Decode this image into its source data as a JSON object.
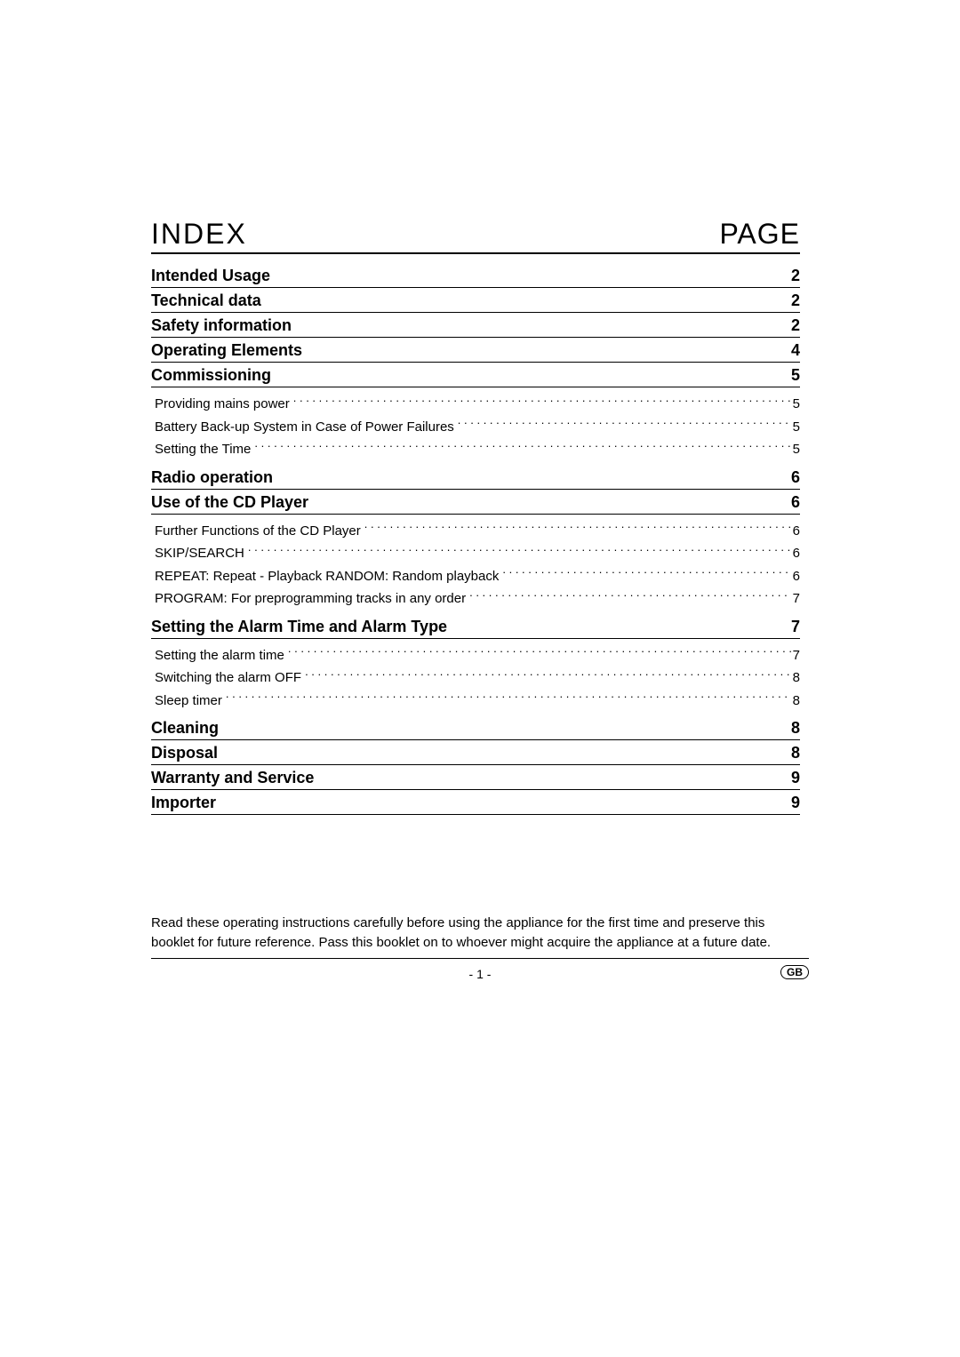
{
  "colors": {
    "text": "#000000",
    "background": "#ffffff",
    "rule": "#000000"
  },
  "typography": {
    "header_fontsize_pt": 24,
    "section_fontsize_pt": 14,
    "sub_fontsize_pt": 11,
    "footer_fontsize_pt": 11,
    "font_family": "Futura / Century Gothic"
  },
  "header": {
    "left": "INDEX",
    "right": "PAGE"
  },
  "sections": [
    {
      "title": "Intended Usage",
      "page": "2",
      "subs": []
    },
    {
      "title": "Technical data",
      "page": "2",
      "subs": []
    },
    {
      "title": "Safety information",
      "page": "2",
      "subs": []
    },
    {
      "title": "Operating Elements",
      "page": "4",
      "subs": []
    },
    {
      "title": "Commissioning",
      "page": "5",
      "subs": [
        {
          "label": "Providing mains power",
          "page": "5"
        },
        {
          "label": "Battery Back-up System in Case of Power Failures",
          "page": "5"
        },
        {
          "label": "Setting the Time",
          "page": "5"
        }
      ]
    },
    {
      "title": "Radio operation",
      "page": "6",
      "subs": []
    },
    {
      "title": "Use of the CD Player",
      "page": "6",
      "subs": [
        {
          "label": "Further Functions of the CD Player",
          "page": "6"
        },
        {
          "label": "SKIP/SEARCH",
          "page": "6"
        },
        {
          "label": "REPEAT: Repeat - Playback RANDOM: Random playback",
          "page": "6"
        },
        {
          "label": "PROGRAM:  For preprogramming tracks in any order",
          "page": "7"
        }
      ]
    },
    {
      "title": "Setting the Alarm Time and Alarm Type",
      "page": "7",
      "subs": [
        {
          "label": "Setting the alarm time",
          "page": "7"
        },
        {
          "label": "Switching the alarm OFF",
          "page": "8"
        },
        {
          "label": "Sleep timer",
          "page": "8"
        }
      ]
    },
    {
      "title": "Cleaning",
      "page": "8",
      "subs": []
    },
    {
      "title": "Disposal",
      "page": "8",
      "subs": []
    },
    {
      "title": "Warranty and Service",
      "page": "9",
      "subs": []
    },
    {
      "title": "Importer",
      "page": "9",
      "subs": []
    }
  ],
  "footer": {
    "note": "Read these operating instructions carefully before using the appliance for the first time and preserve this booklet for future reference. Pass this booklet on to whoever might acquire the appliance at a future date.",
    "page_number": "- 1 -",
    "region_badge": "GB"
  }
}
